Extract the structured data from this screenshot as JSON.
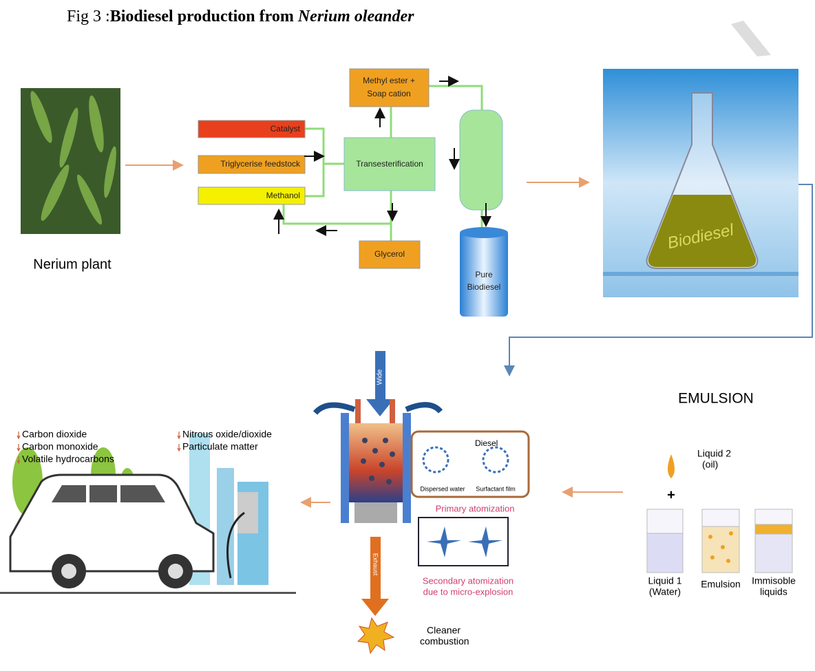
{
  "title": {
    "prefix": "Fig 3 :",
    "bold": "Biodiesel production from ",
    "italic": "Nerium oleander"
  },
  "plant": {
    "label": "Nerium plant"
  },
  "process": {
    "catalyst": "Catalyst",
    "feedstock": "Triglycerise feedstock",
    "methanol": "Methanol",
    "reaction": "Transesterification",
    "ester": [
      "Methyl ester +",
      "Soap cation"
    ],
    "glycerol": "Glycerol",
    "product": [
      "Pure",
      "Biodiesel"
    ]
  },
  "flask": {
    "label": "Biodiesel"
  },
  "emulsion": {
    "heading": "EMULSION",
    "liquid2": [
      "Liquid 2",
      "(oil)"
    ],
    "plus": "+",
    "beakers": [
      [
        "Liquid 1",
        "(Water)"
      ],
      [
        "Emulsion"
      ],
      [
        "Immisoble",
        "liquids"
      ]
    ]
  },
  "engine": {
    "intake": "Wide",
    "diesel": "Diesel",
    "water": "Dispersed water",
    "film": "Surfactant film",
    "primary": "Primary atomization",
    "secondary": [
      "Secondary atomization",
      "due to micro-explosion"
    ],
    "exhaust": "Exhaust",
    "combustion": [
      "Cleaner",
      "combustion"
    ]
  },
  "emissions": {
    "left": [
      "Carbon dioxide",
      "Carbon monoxide",
      "Volatile hydrocarbons"
    ],
    "right": [
      "Nitrous oxide/dioxide",
      "Particulate matter"
    ]
  }
}
